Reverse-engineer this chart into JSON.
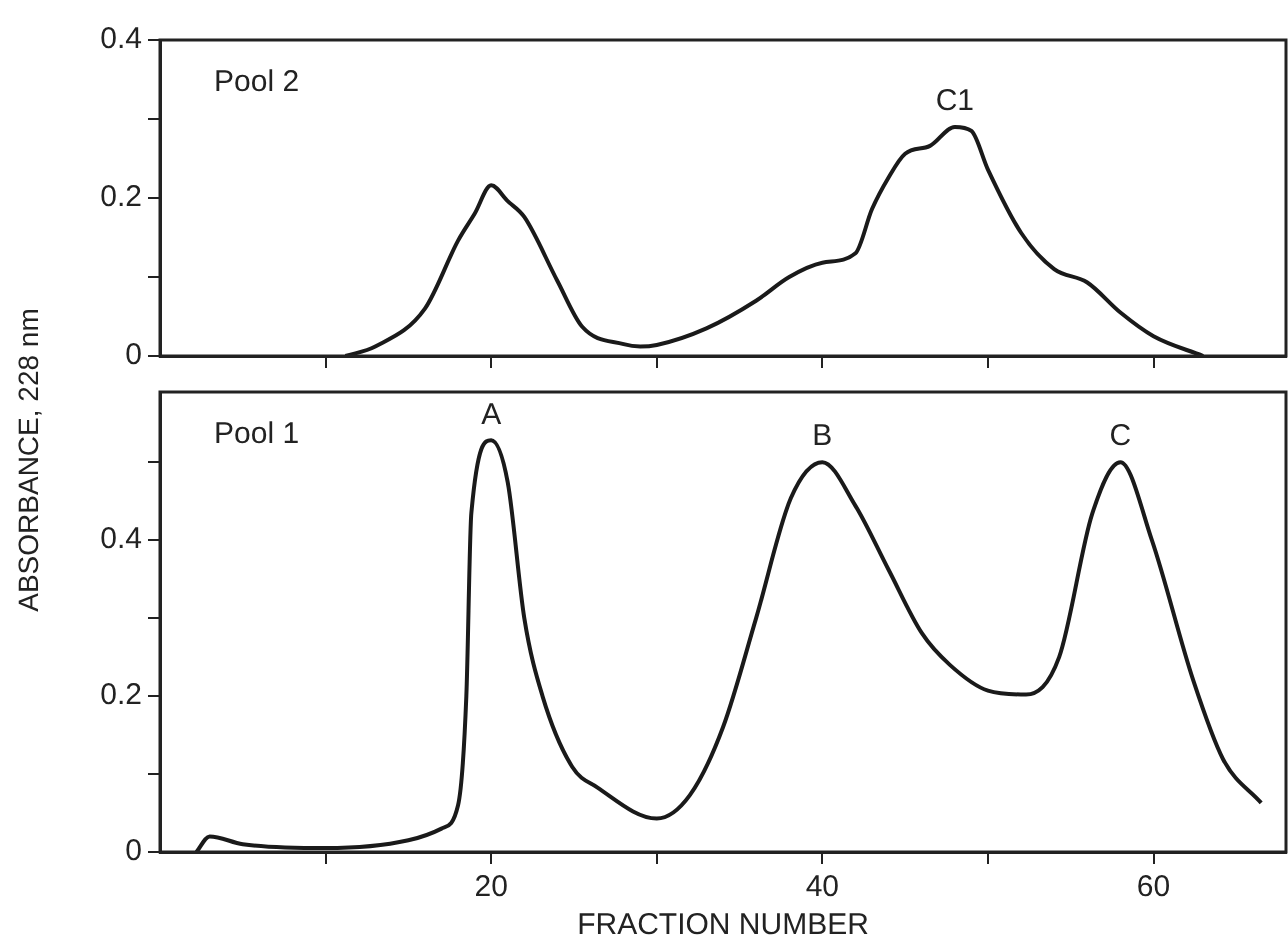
{
  "chart_data": [
    {
      "type": "line",
      "tick_labels": "y",
      "color": "#1a1a1a",
      "marker": "none",
      "line_style": "solid",
      "grid": false,
      "legend": false,
      "x": [
        11.2,
        13,
        16,
        18,
        19,
        20,
        21,
        22,
        24,
        25.5,
        28,
        29,
        30,
        33,
        36,
        38,
        40,
        42,
        43,
        44,
        45,
        46.5,
        48,
        49,
        50,
        52,
        54,
        56,
        58,
        60,
        63
      ],
      "values": [
        0,
        0.012,
        0.06,
        0.146,
        0.18,
        0.216,
        0.196,
        0.176,
        0.095,
        0.037,
        0.015,
        0.012,
        0.014,
        0.035,
        0.07,
        0.1,
        0.118,
        0.13,
        0.186,
        0.226,
        0.256,
        0.266,
        0.29,
        0.285,
        0.236,
        0.156,
        0.11,
        0.093,
        0.055,
        0.025,
        0
      ],
      "xlim": [
        0,
        68
      ],
      "xticks": [
        {
          "value": 10,
          "label": null
        },
        {
          "value": 20,
          "label": null
        },
        {
          "value": 30,
          "label": null
        },
        {
          "value": 40,
          "label": null
        },
        {
          "value": 50,
          "label": null
        },
        {
          "value": 60,
          "label": null
        }
      ],
      "ylim": [
        0,
        0.4
      ],
      "yticks": [
        0,
        {
          "value": 0.1,
          "label": null
        },
        0.2,
        {
          "value": 0.3,
          "label": null
        },
        0.4
      ],
      "annotations": [
        "Pool 2",
        {
          "text": "C1",
          "x": 48,
          "y": 0.29
        }
      ]
    },
    {
      "type": "line",
      "color": "#1a1a1a",
      "marker": "none",
      "line_style": "solid",
      "grid": false,
      "legend": false,
      "xlabel": "FRACTION NUMBER",
      "ylabel": "ABSORBANCE, 228 nm",
      "x": [
        2.2,
        3,
        5,
        10,
        15,
        17,
        18,
        18.5,
        18.8,
        20,
        21,
        22,
        23.1,
        24.9,
        26.4,
        30,
        32,
        34,
        36,
        38.1,
        40,
        42,
        44,
        46,
        47.7,
        50,
        52.3,
        54.3,
        56.3,
        58,
        59.9,
        62.4,
        64.2,
        66.5
      ],
      "values": [
        0,
        0.02,
        0.01,
        0.005,
        0.015,
        0.03,
        0.06,
        0.2,
        0.434,
        0.528,
        0.474,
        0.3,
        0.2,
        0.109,
        0.083,
        0.043,
        0.073,
        0.16,
        0.3,
        0.454,
        0.5,
        0.444,
        0.362,
        0.281,
        0.24,
        0.207,
        0.202,
        0.25,
        0.434,
        0.5,
        0.4,
        0.22,
        0.119,
        0.063
      ],
      "xlim": [
        0,
        68
      ],
      "xticks": [
        {
          "value": 10,
          "label": null
        },
        20,
        {
          "value": 30,
          "label": null
        },
        40,
        {
          "value": 50,
          "label": null
        },
        60
      ],
      "ylim": [
        0,
        0.59
      ],
      "yticks": [
        0,
        {
          "value": 0.1,
          "label": null
        },
        0.2,
        {
          "value": 0.3,
          "label": null
        },
        0.4,
        {
          "value": 0.5,
          "label": null
        }
      ],
      "annotations": [
        "Pool 1",
        {
          "text": "A",
          "x": 20,
          "y": 0.528
        },
        {
          "text": "B",
          "x": 40,
          "y": 0.5
        },
        {
          "text": "C",
          "x": 58,
          "y": 0.5
        }
      ]
    }
  ]
}
